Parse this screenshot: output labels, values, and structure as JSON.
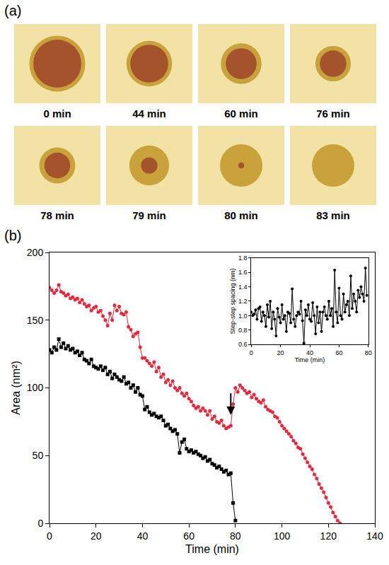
{
  "panel_a": {
    "label": "(a)",
    "images": [
      {
        "caption": "0 min"
      },
      {
        "caption": "44 min"
      },
      {
        "caption": "60 min"
      },
      {
        "caption": "76 min"
      },
      {
        "caption": "78 min"
      },
      {
        "caption": "79 min"
      },
      {
        "caption": "80 min"
      },
      {
        "caption": "83 min"
      }
    ]
  },
  "chart_data": [
    {
      "type": "scatter",
      "panel_label": "(b)",
      "x_label": "Time (min)",
      "y_label": "Area (nm²)",
      "xlim": [
        0,
        140
      ],
      "xticks": [
        0,
        20,
        40,
        60,
        80,
        100,
        120,
        140
      ],
      "ylim": [
        0,
        200
      ],
      "yticks": [
        0,
        50,
        100,
        150,
        200
      ],
      "arrow_at": [
        78,
        80
      ],
      "series": [
        {
          "color": "#e8283a",
          "marker": "circle",
          "line_style": "solid",
          "x": [
            0,
            1,
            2,
            3,
            4,
            5,
            6,
            7,
            8,
            9,
            10,
            11,
            12,
            13,
            14,
            15,
            16,
            17,
            18,
            19,
            20,
            21,
            22,
            23,
            24,
            25,
            26,
            27,
            28,
            29,
            30,
            31,
            32,
            33,
            34,
            35,
            36,
            37,
            38,
            39,
            40,
            41,
            42,
            43,
            44,
            45,
            46,
            47,
            48,
            49,
            50,
            51,
            52,
            53,
            54,
            55,
            56,
            57,
            58,
            59,
            60,
            61,
            62,
            63,
            64,
            65,
            66,
            67,
            68,
            69,
            70,
            71,
            72,
            73,
            74,
            75,
            76,
            77,
            78,
            79,
            80,
            81,
            82,
            83,
            84,
            85,
            86,
            87,
            88,
            89,
            90,
            91,
            92,
            93,
            94,
            95,
            96,
            97,
            98,
            99,
            100,
            101,
            102,
            103,
            104,
            105,
            106,
            107,
            108,
            109,
            110,
            111,
            112,
            113,
            114,
            115,
            116,
            117,
            118,
            119,
            120,
            121,
            122,
            123,
            124,
            125
          ],
          "values": [
            174,
            172,
            170,
            172,
            176,
            171,
            170,
            168,
            169,
            166,
            167,
            165,
            166,
            163,
            165,
            162,
            160,
            161,
            157,
            159,
            160,
            156,
            157,
            153,
            150,
            146,
            155,
            150,
            161,
            157,
            160,
            155,
            154,
            156,
            145,
            143,
            138,
            140,
            141,
            130,
            122,
            122,
            120,
            118,
            116,
            119,
            112,
            115,
            108,
            110,
            104,
            106,
            102,
            105,
            100,
            98,
            100,
            96,
            94,
            96,
            92,
            90,
            87,
            85,
            86,
            83,
            85,
            83,
            80,
            83,
            77,
            79,
            75,
            74,
            76,
            72,
            70,
            71,
            72,
            88,
            100,
            97,
            102,
            100,
            98,
            96,
            97,
            93,
            95,
            92,
            90,
            89,
            91,
            86,
            84,
            83,
            82,
            79,
            78,
            75,
            72,
            70,
            68,
            66,
            64,
            61,
            59,
            56,
            55,
            51,
            48,
            45,
            42,
            40,
            36,
            33,
            29,
            26,
            23,
            19,
            15,
            12,
            8,
            5,
            2,
            0
          ]
        },
        {
          "color": "#000000",
          "marker": "square",
          "line_style": "solid",
          "x": [
            0,
            1,
            2,
            3,
            4,
            5,
            6,
            7,
            8,
            9,
            10,
            11,
            12,
            13,
            14,
            15,
            16,
            17,
            18,
            19,
            20,
            21,
            22,
            23,
            24,
            25,
            26,
            27,
            28,
            29,
            30,
            31,
            32,
            33,
            34,
            35,
            36,
            37,
            38,
            39,
            40,
            41,
            42,
            43,
            44,
            45,
            46,
            47,
            48,
            49,
            50,
            51,
            52,
            53,
            54,
            55,
            56,
            57,
            58,
            59,
            60,
            61,
            62,
            63,
            64,
            65,
            66,
            67,
            68,
            69,
            70,
            71,
            72,
            73,
            74,
            75,
            76,
            77,
            78,
            79,
            80
          ],
          "values": [
            128,
            126,
            130,
            128,
            136,
            130,
            133,
            129,
            131,
            128,
            129,
            126,
            127,
            124,
            126,
            121,
            120,
            118,
            121,
            116,
            115,
            114,
            116,
            113,
            115,
            110,
            112,
            107,
            110,
            108,
            106,
            105,
            108,
            103,
            104,
            100,
            102,
            97,
            100,
            95,
            94,
            84,
            86,
            82,
            80,
            81,
            79,
            78,
            79,
            76,
            72,
            73,
            70,
            68,
            69,
            66,
            52,
            60,
            62,
            55,
            53,
            54,
            52,
            53,
            51,
            50,
            48,
            49,
            46,
            47,
            44,
            43,
            41,
            42,
            40,
            38,
            39,
            36,
            37,
            15,
            2
          ]
        }
      ]
    },
    {
      "type": "scatter",
      "x_label": "Time (min)",
      "y_label": "Step-step spacing (nm)",
      "xlim": [
        0,
        80
      ],
      "xticks": [
        0,
        20,
        40,
        60,
        80
      ],
      "ylim": [
        0.6,
        1.8
      ],
      "yticks": [
        0.6,
        0.8,
        {
          "value": 1,
          "label": "1.0"
        },
        1.2,
        1.4,
        1.6,
        1.8
      ],
      "series": [
        {
          "color": "#000000",
          "marker": "circle",
          "line_style": "solid",
          "x": [
            0,
            1,
            2,
            3,
            4,
            5,
            6,
            7,
            8,
            9,
            10,
            11,
            12,
            13,
            14,
            15,
            16,
            17,
            18,
            19,
            20,
            21,
            22,
            23,
            24,
            25,
            26,
            27,
            28,
            29,
            30,
            31,
            32,
            33,
            34,
            35,
            36,
            37,
            38,
            39,
            40,
            41,
            42,
            43,
            44,
            45,
            46,
            47,
            48,
            49,
            50,
            51,
            52,
            53,
            54,
            55,
            56,
            57,
            58,
            59,
            60,
            61,
            62,
            63,
            64,
            65,
            66,
            67,
            68,
            69,
            70,
            71,
            72,
            73,
            74,
            75,
            76,
            77,
            78,
            79
          ],
          "values": [
            1.05,
            1.0,
            1.02,
            1.08,
            0.95,
            1.1,
            1.12,
            0.92,
            1.05,
            1.0,
            0.85,
            1.15,
            0.98,
            1.2,
            0.82,
            1.05,
            0.95,
            0.72,
            1.1,
            0.98,
            0.9,
            1.15,
            0.95,
            1.0,
            0.78,
            1.05,
            1.03,
            0.9,
            1.37,
            0.95,
            0.85,
            1.0,
            1.05,
            1.02,
            1.2,
            0.93,
            0.62,
            1.08,
            1.0,
            1.15,
            0.95,
            0.92,
            1.18,
            1.0,
            0.75,
            1.12,
            0.9,
            1.05,
            0.78,
            1.05,
            1.12,
            1.0,
            0.95,
            1.2,
            1.0,
            1.1,
            0.85,
            1.63,
            1.05,
            0.9,
            1.38,
            1.0,
            0.95,
            1.3,
            1.05,
            1.15,
            1.2,
            1.0,
            1.55,
            1.1,
            1.3,
            1.2,
            1.05,
            1.35,
            1.25,
            1.4,
            1.3,
            1.2,
            1.66,
            1.28
          ]
        }
      ]
    }
  ]
}
